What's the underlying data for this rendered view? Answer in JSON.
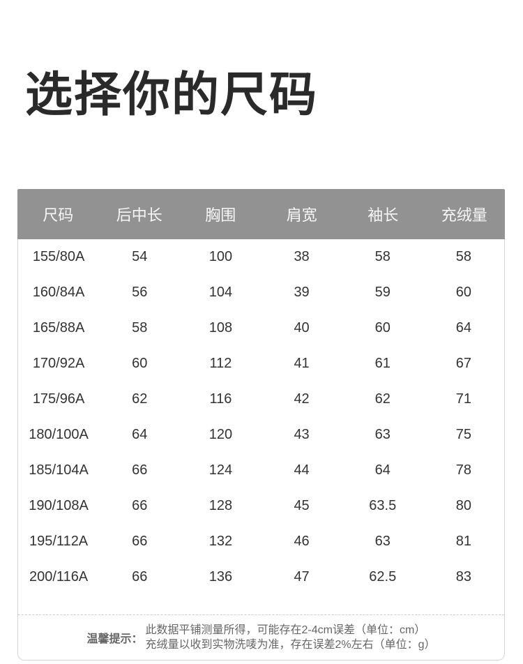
{
  "page": {
    "title": "选择你的尺码"
  },
  "size_table": {
    "headers": [
      "尺码",
      "后中长",
      "胸围",
      "肩宽",
      "袖长",
      "充绒量"
    ],
    "rows": [
      [
        "155/80A",
        "54",
        "100",
        "38",
        "58",
        "58"
      ],
      [
        "160/84A",
        "56",
        "104",
        "39",
        "59",
        "60"
      ],
      [
        "165/88A",
        "58",
        "108",
        "40",
        "60",
        "64"
      ],
      [
        "170/92A",
        "60",
        "112",
        "41",
        "61",
        "67"
      ],
      [
        "175/96A",
        "62",
        "116",
        "42",
        "62",
        "71"
      ],
      [
        "180/100A",
        "64",
        "120",
        "43",
        "63",
        "75"
      ],
      [
        "185/104A",
        "66",
        "124",
        "44",
        "64",
        "78"
      ],
      [
        "190/108A",
        "66",
        "128",
        "45",
        "63.5",
        "80"
      ],
      [
        "195/112A",
        "66",
        "132",
        "46",
        "63",
        "81"
      ],
      [
        "200/116A",
        "66",
        "136",
        "47",
        "62.5",
        "83"
      ]
    ],
    "note": {
      "label": "温馨提示：",
      "line1": "此数据平铺测量所得，可能存在2-4cm误差（单位：cm）",
      "line2": "充绒量以收到实物洗唛为准，存在误差2%左右（单位：g）"
    }
  },
  "colors": {
    "header_bg": "#929292",
    "header_text": "#f7f7f7",
    "row_text": "#333333",
    "title_text": "#2a2a2a",
    "note_text": "#666666",
    "border": "#d5d5d5"
  }
}
